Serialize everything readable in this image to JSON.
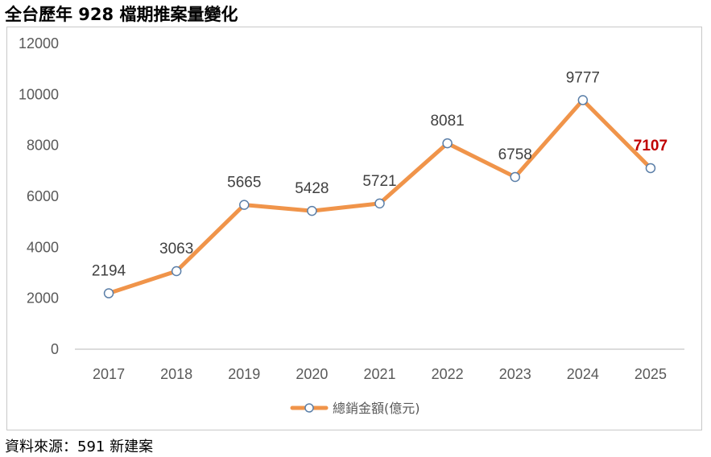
{
  "title": "全台歷年 928 檔期推案量變化",
  "source": "資料來源：591 新建案",
  "chart_data": {
    "type": "line",
    "categories": [
      "2017",
      "2018",
      "2019",
      "2020",
      "2021",
      "2022",
      "2023",
      "2024",
      "2025"
    ],
    "series": [
      {
        "name": "總銷金額(億元)",
        "values": [
          2194,
          3063,
          5665,
          5428,
          5721,
          8081,
          6758,
          9777,
          7107
        ]
      }
    ],
    "ylim": [
      0,
      12000
    ],
    "yticks": [
      0,
      2000,
      4000,
      6000,
      8000,
      10000,
      12000
    ],
    "grid": false,
    "legend": "bottom",
    "highlight_index": 8,
    "colors": {
      "line": "#f0944a",
      "marker_stroke": "#5b7fa8",
      "marker_fill": "#ffffff",
      "highlight_label": "#c00000",
      "axis": "#d0d0d0"
    }
  }
}
